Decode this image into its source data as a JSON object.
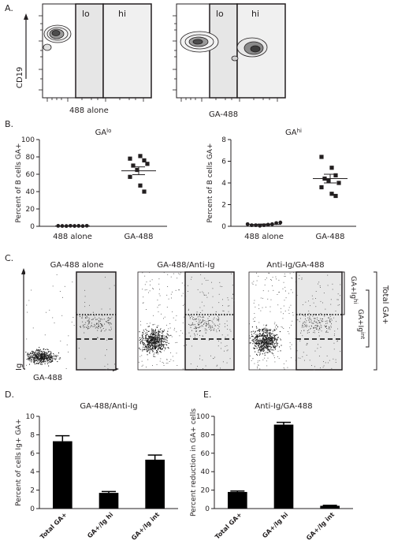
{
  "panels": {
    "A": {
      "label": "A.",
      "y_axis_label": "CD19",
      "plots": [
        {
          "x_label": "488 alone",
          "gate_lo": "lo",
          "gate_hi": "hi"
        },
        {
          "x_label": "GA-488",
          "gate_lo": "lo",
          "gate_hi": "hi"
        }
      ]
    },
    "B": {
      "label": "B."
    },
    "C": {
      "label": "C.",
      "titles": [
        "GA-488 alone",
        "GA-488/Anti-Ig",
        "Anti-Ig/GA-488"
      ],
      "y_axis_label": "Ig",
      "x_axis_label": "GA-488",
      "bracket_hi": "GA+Ig",
      "bracket_hi_sup": "hi",
      "bracket_int": "GA+Ig",
      "bracket_int_sup": "int",
      "bracket_total": "Total GA+"
    },
    "D": {
      "label": "D."
    },
    "E": {
      "label": "E."
    }
  },
  "chart_data": [
    {
      "id": "B-left",
      "type": "scatter",
      "title": "GA",
      "title_sup": "lo",
      "ylabel": "Percent of B cells GA+",
      "ylim": [
        0,
        100
      ],
      "yticks": [
        0,
        20,
        40,
        60,
        80,
        100
      ],
      "categories": [
        "488 alone",
        "GA-488"
      ],
      "points": [
        [
          0.5,
          0.4,
          0.3,
          0.6,
          0.4,
          0.5,
          0.3,
          0.6
        ],
        [
          78,
          81,
          76,
          70,
          65,
          72,
          57,
          47,
          40
        ]
      ],
      "means": [
        0.5,
        64
      ],
      "sem": [
        0.1,
        4.5
      ]
    },
    {
      "id": "B-right",
      "type": "scatter",
      "title": "GA",
      "title_sup": "hi",
      "ylabel": "Percent of B cells GA+",
      "ylim": [
        0,
        8
      ],
      "yticks": [
        0,
        2,
        4,
        6,
        8
      ],
      "categories": [
        "488 alone",
        "GA-488"
      ],
      "points": [
        [
          0.2,
          0.1,
          0.1,
          0.05,
          0.1,
          0.15,
          0.2,
          0.3,
          0.35
        ],
        [
          6.4,
          5.4,
          4.7,
          4.4,
          4.2,
          4.0,
          3.6,
          3.0,
          2.8
        ]
      ],
      "means": [
        0.17,
        4.4
      ],
      "sem": [
        0.04,
        0.4
      ]
    },
    {
      "id": "D",
      "type": "bar",
      "title": "GA-488/Anti-Ig",
      "ylabel": "Percent of cells Ig+ GA+",
      "ylim": [
        0,
        10
      ],
      "yticks": [
        0,
        2,
        4,
        6,
        8,
        10
      ],
      "categories": [
        "Total GA+",
        "GA+/Ig hi",
        "GA+/Ig int"
      ],
      "values": [
        7.3,
        1.7,
        5.3
      ],
      "errors": [
        0.6,
        0.15,
        0.5
      ]
    },
    {
      "id": "E",
      "type": "bar",
      "title": "Anti-Ig/GA-488",
      "ylabel": "Percent reduction in GA+ cells",
      "ylim": [
        0,
        100
      ],
      "yticks": [
        0,
        20,
        40,
        60,
        80,
        100
      ],
      "categories": [
        "Total GA+",
        "GA+/Ig hi",
        "GA+/Ig int"
      ],
      "values": [
        18,
        91,
        3
      ],
      "errors": [
        1,
        2.5,
        0.5
      ]
    }
  ]
}
